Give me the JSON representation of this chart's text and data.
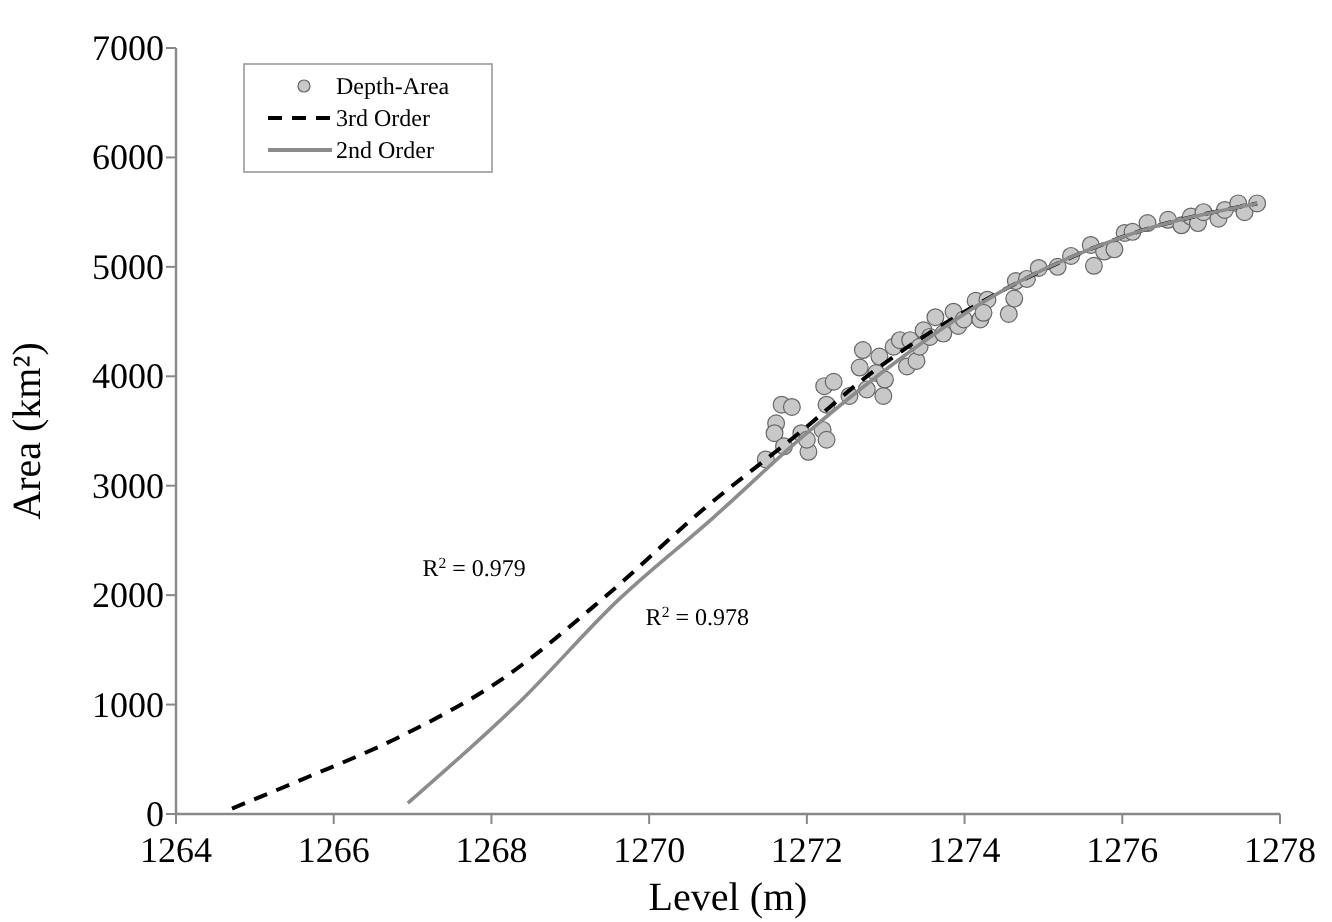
{
  "chart_data": {
    "type": "scatter",
    "xlabel": "Level (m)",
    "ylabel": "Area (km²)",
    "xlim": [
      1264,
      1278
    ],
    "ylim": [
      0,
      7000
    ],
    "xticks": [
      1264,
      1266,
      1268,
      1270,
      1272,
      1274,
      1276,
      1278
    ],
    "yticks": [
      0,
      1000,
      2000,
      3000,
      4000,
      5000,
      6000,
      7000
    ],
    "grid": false,
    "legend": "top left",
    "series": [
      {
        "name": "Depth-Area",
        "color": "#c8c8c8",
        "marker": "circle",
        "x": [
          1271.48,
          1271.61,
          1271.59,
          1271.68,
          1271.81,
          1271.71,
          1271.93,
          1272.02,
          1272.0,
          1272.2,
          1272.25,
          1272.22,
          1272.34,
          1272.25,
          1272.54,
          1272.67,
          1272.71,
          1272.76,
          1272.88,
          1272.97,
          1272.99,
          1272.92,
          1273.1,
          1273.18,
          1273.27,
          1273.31,
          1273.39,
          1273.43,
          1273.48,
          1273.56,
          1273.63,
          1273.73,
          1273.86,
          1273.92,
          1273.99,
          1274.14,
          1274.2,
          1274.29,
          1274.24,
          1274.56,
          1274.65,
          1274.63,
          1274.79,
          1274.94,
          1275.18,
          1275.35,
          1275.6,
          1275.64,
          1275.77,
          1275.9,
          1276.03,
          1276.13,
          1276.32,
          1276.58,
          1276.75,
          1276.87,
          1276.96,
          1277.03,
          1277.22,
          1277.3,
          1277.47,
          1277.55,
          1277.71
        ],
        "values": [
          3240,
          3570,
          3480,
          3740,
          3720,
          3360,
          3480,
          3310,
          3420,
          3510,
          3420,
          3910,
          3950,
          3740,
          3820,
          4080,
          4240,
          3880,
          4030,
          3820,
          3970,
          4180,
          4270,
          4330,
          4090,
          4330,
          4140,
          4270,
          4420,
          4360,
          4540,
          4390,
          4590,
          4460,
          4520,
          4690,
          4520,
          4700,
          4580,
          4570,
          4870,
          4710,
          4890,
          4990,
          5000,
          5100,
          5200,
          5010,
          5140,
          5160,
          5310,
          5320,
          5400,
          5430,
          5380,
          5460,
          5400,
          5500,
          5440,
          5520,
          5580,
          5500,
          5580
        ]
      },
      {
        "name": "3rd Order",
        "type": "line",
        "color": "#000000",
        "line_style": "dashed",
        "marker": "none",
        "x": [
          1264.71,
          1265.58,
          1266.85,
          1268.13,
          1269.4,
          1270.68,
          1271.95,
          1272.71,
          1274.5,
          1276.03,
          1277.71
        ],
        "values": [
          50,
          310,
          710,
          1230,
          1960,
          2780,
          3510,
          3970,
          4790,
          5280,
          5580
        ]
      },
      {
        "name": "2nd Order",
        "type": "line",
        "color": "#8c8c8c",
        "line_style": "solid",
        "marker": "none",
        "x": [
          1266.94,
          1268.38,
          1269.6,
          1270.8,
          1271.95,
          1272.71,
          1274.5,
          1276.03,
          1277.71
        ],
        "values": [
          100,
          1040,
          1950,
          2700,
          3450,
          3900,
          4790,
          5280,
          5580
        ]
      }
    ],
    "annotations": [
      "R$^{2}$ = 0.979",
      "R$^{2}$ = 0.978"
    ]
  }
}
